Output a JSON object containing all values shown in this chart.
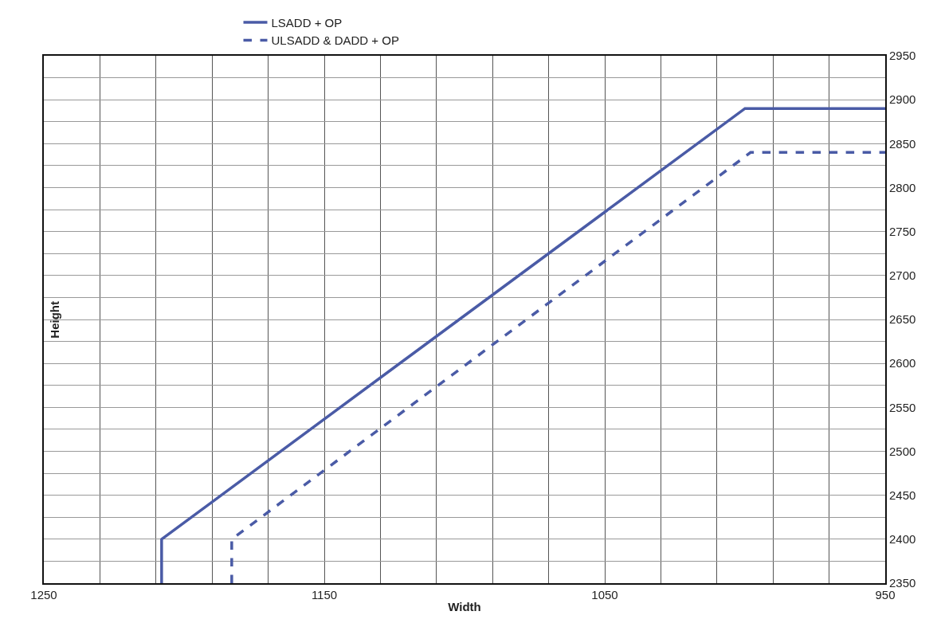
{
  "chart_data": {
    "type": "line",
    "xlabel": "Width",
    "ylabel": "Height",
    "xlim": [
      1250,
      950
    ],
    "xticks": [
      1250,
      {
        "value": 1230,
        "label": null
      },
      {
        "value": 1210,
        "label": null
      },
      {
        "value": 1190,
        "label": null
      },
      {
        "value": 1170,
        "label": null
      },
      1150,
      {
        "value": 1130,
        "label": null
      },
      {
        "value": 1110,
        "label": null
      },
      {
        "value": 1090,
        "label": null
      },
      {
        "value": 1070,
        "label": null
      },
      1050,
      {
        "value": 1030,
        "label": null
      },
      {
        "value": 1010,
        "label": null
      },
      {
        "value": 990,
        "label": null
      },
      {
        "value": 970,
        "label": null
      },
      950
    ],
    "ylim": [
      2350,
      2950
    ],
    "yticks": [
      2350,
      {
        "value": 2375,
        "label": null
      },
      2400,
      {
        "value": 2425,
        "label": null
      },
      2450,
      {
        "value": 2475,
        "label": null
      },
      2500,
      {
        "value": 2525,
        "label": null
      },
      2550,
      {
        "value": 2575,
        "label": null
      },
      2600,
      {
        "value": 2625,
        "label": null
      },
      2650,
      {
        "value": 2675,
        "label": null
      },
      2700,
      {
        "value": 2725,
        "label": null
      },
      2750,
      {
        "value": 2775,
        "label": null
      },
      2800,
      {
        "value": 2825,
        "label": null
      },
      2850,
      {
        "value": 2875,
        "label": null
      },
      2900,
      {
        "value": 2925,
        "label": null
      },
      2950
    ],
    "grid": true,
    "legend": "top",
    "marker": "none",
    "series": [
      {
        "name": "LSADD + OP",
        "color": "#4a5ba6",
        "line_style": "solid",
        "x": [
          1208,
          1208,
          1000,
          950
        ],
        "values": [
          2350,
          2400,
          2890,
          2890
        ]
      },
      {
        "name": "ULSADD & DADD + OP",
        "color": "#4a5ba6",
        "line_style": "dashed",
        "x": [
          1183,
          1183,
          998,
          950
        ],
        "values": [
          2350,
          2400,
          2840,
          2840
        ]
      }
    ]
  }
}
